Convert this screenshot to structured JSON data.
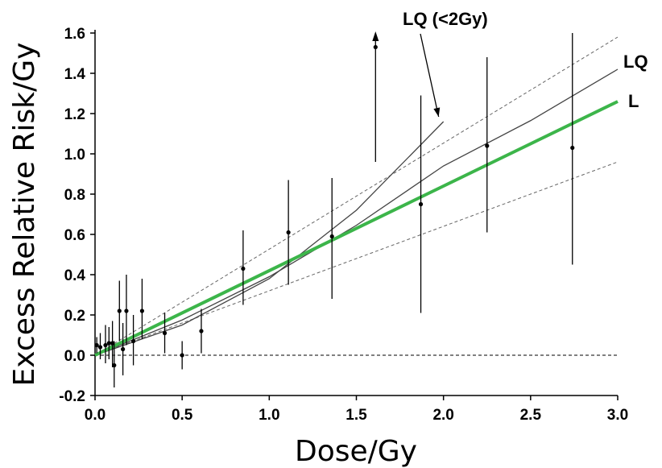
{
  "chart_data": {
    "type": "scatter",
    "xlabel": "Dose/Gy",
    "ylabel": "Excess Relative Risk/Gy",
    "xlim": [
      0,
      3.0
    ],
    "ylim": [
      -0.2,
      1.6
    ],
    "x_ticks": [
      "0.0",
      "0.5",
      "1.0",
      "1.5",
      "2.0",
      "2.5",
      "3.0"
    ],
    "y_ticks": [
      "-0.2",
      "0.0",
      "0.2",
      "0.4",
      "0.6",
      "0.8",
      "1.0",
      "1.2",
      "1.4",
      "1.6"
    ],
    "points": [
      {
        "x": 0.01,
        "y": 0.05,
        "lo": 0.01,
        "hi": 0.09
      },
      {
        "x": 0.03,
        "y": 0.04,
        "lo": -0.02,
        "hi": 0.11
      },
      {
        "x": 0.06,
        "y": 0.05,
        "lo": -0.04,
        "hi": 0.15
      },
      {
        "x": 0.08,
        "y": 0.06,
        "lo": -0.02,
        "hi": 0.14
      },
      {
        "x": 0.1,
        "y": 0.06,
        "lo": -0.06,
        "hi": 0.17
      },
      {
        "x": 0.11,
        "y": -0.05,
        "lo": -0.16,
        "hi": 0.07
      },
      {
        "x": 0.14,
        "y": 0.22,
        "lo": 0.07,
        "hi": 0.37
      },
      {
        "x": 0.16,
        "y": 0.03,
        "lo": -0.1,
        "hi": 0.16
      },
      {
        "x": 0.18,
        "y": 0.22,
        "lo": 0.05,
        "hi": 0.4
      },
      {
        "x": 0.22,
        "y": 0.07,
        "lo": -0.05,
        "hi": 0.2
      },
      {
        "x": 0.27,
        "y": 0.22,
        "lo": 0.08,
        "hi": 0.38
      },
      {
        "x": 0.4,
        "y": 0.11,
        "lo": 0.01,
        "hi": 0.21
      },
      {
        "x": 0.5,
        "y": 0.0,
        "lo": -0.07,
        "hi": 0.07
      },
      {
        "x": 0.61,
        "y": 0.12,
        "lo": 0.01,
        "hi": 0.23
      },
      {
        "x": 0.85,
        "y": 0.43,
        "lo": 0.25,
        "hi": 0.62
      },
      {
        "x": 1.11,
        "y": 0.61,
        "lo": 0.35,
        "hi": 0.87
      },
      {
        "x": 1.36,
        "y": 0.59,
        "lo": 0.28,
        "hi": 0.88
      },
      {
        "x": 1.61,
        "y": 1.53,
        "lo": 0.96,
        "hi": 1.62,
        "arrow": true
      },
      {
        "x": 1.87,
        "y": 0.75,
        "lo": 0.21,
        "hi": 1.29
      },
      {
        "x": 2.25,
        "y": 1.04,
        "lo": 0.61,
        "hi": 1.48
      },
      {
        "x": 2.74,
        "y": 1.03,
        "lo": 0.45,
        "hi": 1.6
      }
    ],
    "series": [
      {
        "name": "L",
        "type": "line",
        "color": "#3cb54a",
        "x": [
          0,
          3.0
        ],
        "y": [
          0,
          1.26
        ]
      },
      {
        "name": "LQ",
        "type": "line",
        "color": "#444444",
        "x": [
          0,
          0.5,
          1.0,
          1.5,
          2.0,
          2.5,
          3.0
        ],
        "y": [
          0,
          0.175,
          0.39,
          0.645,
          0.94,
          1.165,
          1.42
        ]
      },
      {
        "name": "LQ (<2Gy)",
        "type": "line",
        "color": "#444444",
        "x": [
          0,
          0.5,
          1.0,
          1.5,
          2.0
        ],
        "y": [
          0,
          0.15,
          0.38,
          0.72,
          1.16
        ]
      },
      {
        "name": "upper CI",
        "type": "dashed",
        "color": "#666666",
        "x": [
          0,
          3.0
        ],
        "y": [
          0,
          1.58
        ]
      },
      {
        "name": "lower CI",
        "type": "dashed",
        "color": "#666666",
        "x": [
          0,
          3.0
        ],
        "y": [
          0,
          0.96
        ]
      }
    ],
    "reference_line": {
      "y": 0.0,
      "style": "dotted"
    },
    "annotations": {
      "lq_low_dose": "LQ (<2Gy)",
      "lq": "LQ",
      "linear": "L"
    }
  }
}
